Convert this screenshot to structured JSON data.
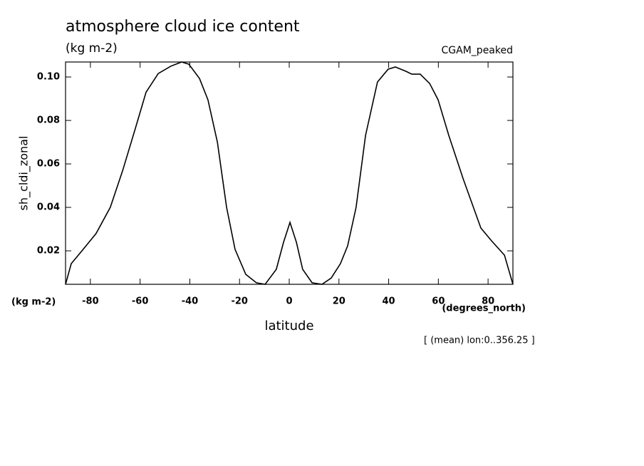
{
  "chart_data": {
    "type": "line",
    "title": "atmosphere cloud ice content",
    "subtitle": "(kg m-2)",
    "dataset": "CGAM_peaked",
    "y_label": "sh_cldi_zonal",
    "y_units": "(kg m-2)",
    "x_label": "latitude",
    "x_units": "(degrees_north)",
    "footnote": "[ (mean) lon:0..356.25 ]",
    "x": [
      -90,
      -87.7,
      -83.4,
      -77.7,
      -72,
      -67,
      -62,
      -57.6,
      -52.7,
      -47.6,
      -43.3,
      -40.4,
      -36.1,
      -32.7,
      -28.9,
      -25.2,
      -21.8,
      -17.5,
      -13.2,
      -9.7,
      -5.2,
      -2.3,
      0.3,
      2.9,
      5.4,
      9.2,
      13.2,
      16.9,
      20.6,
      23.5,
      26.9,
      30.7,
      35.5,
      39.8,
      42.7,
      47,
      49.3,
      52.7,
      56.5,
      59.9,
      64.2,
      69.9,
      77.1,
      81.4,
      86.6,
      90
    ],
    "series": [
      {
        "color": "#000000",
        "values": [
          0.0046,
          0.0141,
          0.02,
          0.028,
          0.04,
          0.057,
          0.076,
          0.093,
          0.1016,
          0.105,
          0.1069,
          0.1059,
          0.0993,
          0.0895,
          0.07,
          0.04,
          0.0207,
          0.0092,
          0.0053,
          0.0046,
          0.0115,
          0.0239,
          0.0331,
          0.0239,
          0.0115,
          0.0053,
          0.0046,
          0.0075,
          0.0141,
          0.0223,
          0.04,
          0.0731,
          0.0977,
          0.1036,
          0.1046,
          0.1026,
          0.1013,
          0.1013,
          0.097,
          0.0895,
          0.0731,
          0.0534,
          0.0305,
          0.0246,
          0.018,
          0.0046
        ]
      }
    ],
    "xlim": [
      -90,
      90
    ],
    "xticks": [
      -80,
      -60,
      -40,
      -20,
      0,
      20,
      40,
      60,
      80
    ],
    "ylim": [
      0.0046,
      0.1069
    ],
    "yticks": [
      0.02,
      0.04,
      0.06,
      0.08,
      {
        "value": 0.1,
        "label": "0.10"
      }
    ]
  }
}
